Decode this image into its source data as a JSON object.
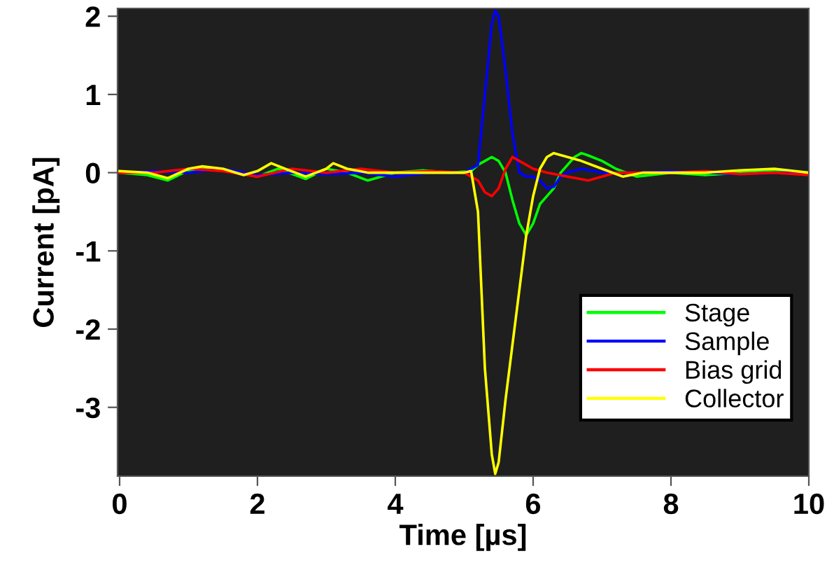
{
  "chart_data": {
    "type": "line",
    "xlabel": "Time [µs]",
    "ylabel": "Current [pA]",
    "xlim": [
      -0.03,
      10
    ],
    "ylim": [
      -3.88,
      2.1
    ],
    "xticks": [
      0,
      2,
      4,
      6,
      8,
      10
    ],
    "yticks": [
      -3,
      -2,
      -1,
      0,
      1,
      2
    ],
    "grid": false,
    "legend": "bottom right",
    "marker": "none",
    "line_style": "solid",
    "series": [
      {
        "name": "Stage",
        "color": "#00ff00",
        "x": [
          0,
          0.4,
          0.7,
          1.0,
          1.3,
          1.7,
          2.0,
          2.3,
          2.7,
          3.0,
          3.3,
          3.6,
          4.0,
          4.4,
          4.8,
          5.1,
          5.2,
          5.3,
          5.4,
          5.5,
          5.6,
          5.7,
          5.8,
          5.9,
          6.0,
          6.1,
          6.2,
          6.3,
          6.4,
          6.5,
          6.6,
          6.7,
          6.8,
          7.0,
          7.2,
          7.5,
          8.0,
          8.5,
          9.0,
          9.5,
          10
        ],
        "values": [
          0.0,
          -0.03,
          -0.1,
          0.03,
          0.05,
          0.0,
          -0.05,
          0.05,
          -0.08,
          0.05,
          0.0,
          -0.1,
          0.0,
          0.03,
          0.0,
          0.02,
          0.1,
          0.15,
          0.2,
          0.15,
          0.0,
          -0.35,
          -0.65,
          -0.8,
          -0.65,
          -0.4,
          -0.3,
          -0.2,
          0.0,
          0.1,
          0.2,
          0.25,
          0.22,
          0.15,
          0.05,
          -0.05,
          0.0,
          -0.03,
          0.0,
          0.03,
          0.0
        ]
      },
      {
        "name": "Sample",
        "color": "#0000ff",
        "x": [
          0,
          0.5,
          1.0,
          1.5,
          2.0,
          2.5,
          3.0,
          3.5,
          4.0,
          4.5,
          5.0,
          5.2,
          5.3,
          5.4,
          5.45,
          5.5,
          5.6,
          5.7,
          5.8,
          5.9,
          6.0,
          6.1,
          6.2,
          6.3,
          6.4,
          6.5,
          6.7,
          7.0,
          7.5,
          8.0,
          8.5,
          9.0,
          9.5,
          10
        ],
        "values": [
          0.0,
          0.02,
          0.0,
          0.05,
          -0.03,
          0.0,
          -0.02,
          0.0,
          -0.05,
          0.0,
          0.0,
          0.1,
          1.0,
          1.9,
          2.07,
          2.0,
          1.3,
          0.5,
          0.0,
          -0.05,
          -0.05,
          -0.1,
          -0.2,
          -0.18,
          -0.05,
          0.0,
          0.05,
          0.0,
          0.0,
          0.02,
          0.0,
          -0.02,
          0.0,
          0.0
        ]
      },
      {
        "name": "Bias grid",
        "color": "#ff0000",
        "x": [
          0,
          0.5,
          1.0,
          1.5,
          2.0,
          2.5,
          3.0,
          3.5,
          4.0,
          4.5,
          5.0,
          5.2,
          5.3,
          5.4,
          5.5,
          5.6,
          5.7,
          5.8,
          5.9,
          6.0,
          6.2,
          6.5,
          6.8,
          7.0,
          7.2,
          7.5,
          8.0,
          8.5,
          9.0,
          9.5,
          10
        ],
        "values": [
          0.0,
          0.0,
          0.05,
          0.02,
          -0.05,
          0.05,
          0.0,
          0.05,
          0.0,
          0.02,
          0.0,
          -0.1,
          -0.25,
          -0.3,
          -0.2,
          0.05,
          0.2,
          0.15,
          0.1,
          0.05,
          0.0,
          -0.05,
          -0.1,
          -0.05,
          0.0,
          0.0,
          0.0,
          0.02,
          -0.02,
          0.0,
          -0.03
        ]
      },
      {
        "name": "Collector",
        "color": "#ffff00",
        "x": [
          0,
          0.4,
          0.7,
          1.0,
          1.2,
          1.5,
          1.8,
          2.0,
          2.2,
          2.4,
          2.7,
          3.0,
          3.1,
          3.3,
          3.6,
          4.0,
          4.5,
          5.0,
          5.1,
          5.2,
          5.3,
          5.4,
          5.45,
          5.5,
          5.6,
          5.7,
          5.8,
          5.9,
          6.0,
          6.1,
          6.2,
          6.3,
          6.5,
          6.7,
          7.0,
          7.3,
          7.6,
          8.0,
          8.5,
          9.0,
          9.5,
          10
        ],
        "values": [
          0.02,
          0.0,
          -0.07,
          0.05,
          0.08,
          0.05,
          -0.03,
          0.02,
          0.12,
          0.05,
          -0.05,
          0.05,
          0.12,
          0.05,
          0.0,
          0.0,
          0.0,
          0.0,
          0.02,
          -0.5,
          -2.5,
          -3.6,
          -3.85,
          -3.7,
          -2.9,
          -2.2,
          -1.5,
          -0.8,
          -0.3,
          0.05,
          0.2,
          0.25,
          0.2,
          0.15,
          0.05,
          -0.05,
          0.0,
          0.0,
          0.0,
          0.03,
          0.05,
          0.0
        ]
      }
    ]
  }
}
